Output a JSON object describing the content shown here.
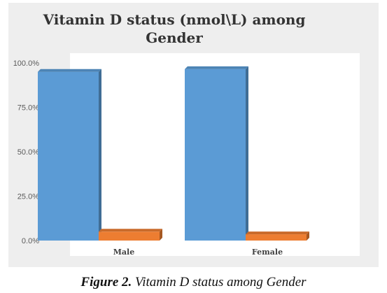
{
  "chart_data": {
    "type": "bar",
    "title_lines": [
      "Vitamin D status (nmol\\L) among",
      "Gender"
    ],
    "categories": [
      "Male",
      "Female"
    ],
    "series": [
      {
        "values": [
          95.0,
          96.5
        ],
        "color": "#5b9bd5"
      },
      {
        "values": [
          5.0,
          3.5
        ],
        "color": "#ed7d31"
      }
    ],
    "ylim": [
      0,
      100
    ],
    "yticks": [
      "0.0%",
      "25.0%",
      "50.0%",
      "75.0%",
      "100.0%"
    ],
    "grid": false,
    "legend": "none",
    "bar_style": "3d"
  },
  "caption": {
    "label": "Figure 2.",
    "text": "Vitamin D status among Gender"
  },
  "colors": {
    "frame_bg": "#eeeeee",
    "plot_bg": "#ffffff"
  }
}
